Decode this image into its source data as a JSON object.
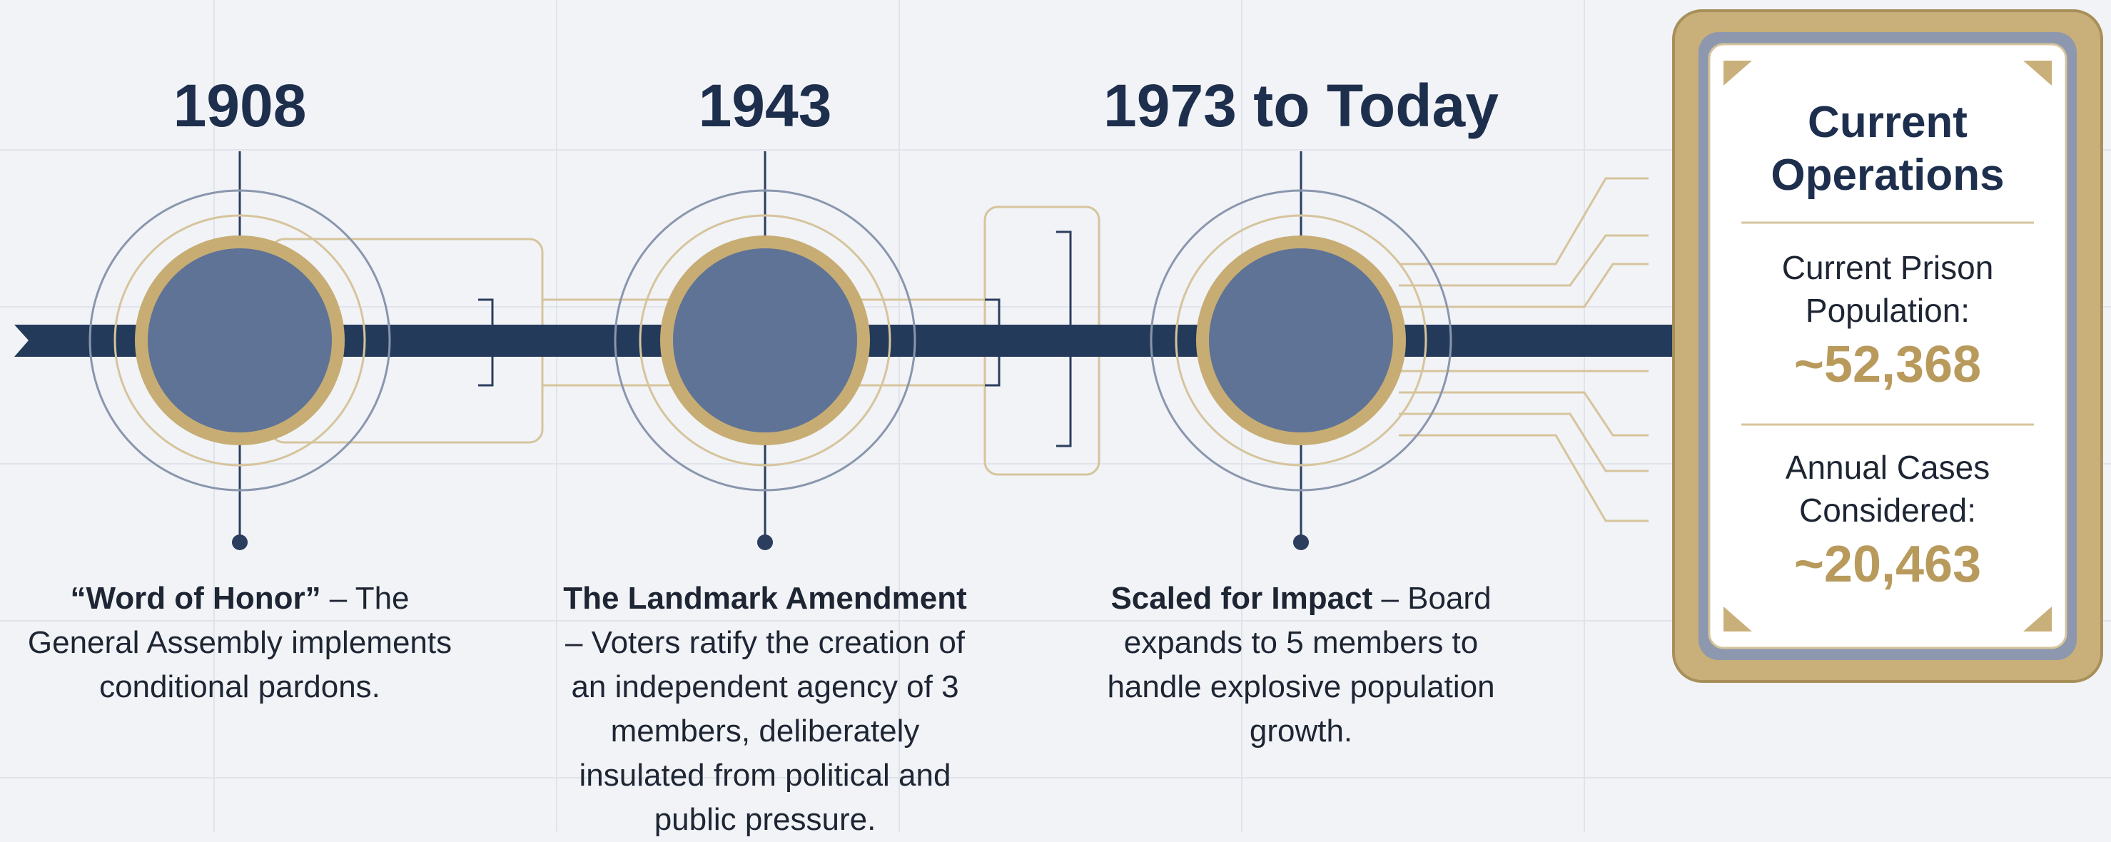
{
  "milestones": [
    {
      "year": "1908",
      "lead": "“Word of Honor”",
      "text": " – The General Assembly implements conditional pardons."
    },
    {
      "year": "1943",
      "lead": "The Landmark Amendment",
      "text": " – Voters ratify the creation of an independent agency of 3 members, deliberately insulated from political and public pressure."
    },
    {
      "year": "1973 to Today",
      "lead": "Scaled for Impact",
      "text": " – Board expands to 5 members to handle explosive population growth."
    }
  ],
  "panel": {
    "title": "Current Operations",
    "stats": [
      {
        "label": "Current Prison Population:",
        "value": "~52,368"
      },
      {
        "label": "Annual Cases Considered:",
        "value": "~20,463"
      }
    ]
  }
}
